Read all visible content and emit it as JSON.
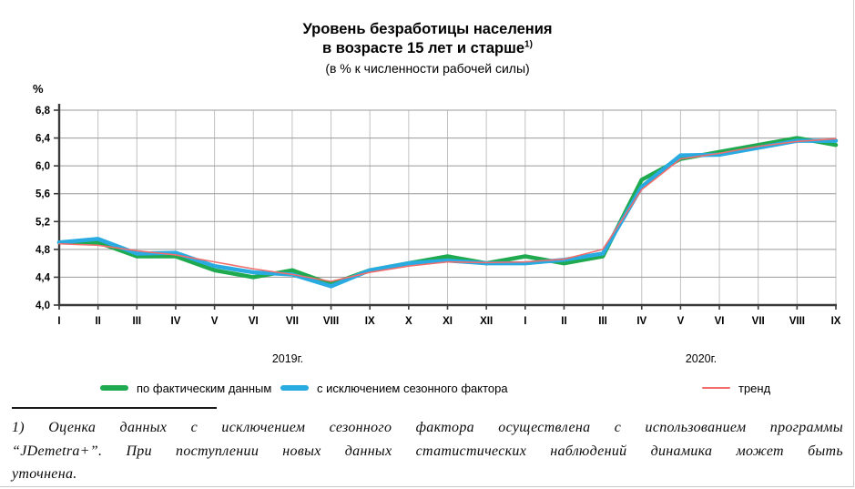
{
  "title": {
    "line1": "Уровень безработицы населения",
    "line2": "в возрасте 15 лет и старше",
    "footnote_ref": "1)",
    "subtitle": "(в % к численности рабочей силы)"
  },
  "chart_data": {
    "type": "line",
    "unit_label": "%",
    "categories": [
      "I",
      "II",
      "III",
      "IV",
      "V",
      "VI",
      "VII",
      "VIII",
      "IX",
      "X",
      "XI",
      "XII",
      "I",
      "II",
      "III",
      "IV",
      "V",
      "VI",
      "VII",
      "VIII",
      "IX"
    ],
    "year_labels": [
      "2019г.",
      "2020г."
    ],
    "ylim": [
      4.0,
      6.8
    ],
    "ystep": 0.4,
    "grid": true,
    "legend_position": "bottom",
    "series": [
      {
        "name": "по фактическим данным",
        "color": "#1faa4f",
        "stroke_width": 4.5,
        "values": [
          4.9,
          4.9,
          4.7,
          4.7,
          4.5,
          4.4,
          4.5,
          4.3,
          4.5,
          4.6,
          4.7,
          4.6,
          4.7,
          4.6,
          4.7,
          5.8,
          6.1,
          6.2,
          6.3,
          6.4,
          6.3
        ]
      },
      {
        "name": "с исключением сезонного фактора",
        "color": "#29abe2",
        "stroke_width": 4.5,
        "values": [
          4.9,
          4.95,
          4.74,
          4.75,
          4.56,
          4.47,
          4.44,
          4.27,
          4.5,
          4.6,
          4.64,
          4.6,
          4.6,
          4.65,
          4.74,
          5.7,
          6.15,
          6.16,
          6.26,
          6.36,
          6.36
        ]
      },
      {
        "name": "тренд",
        "color": "#f26c6c",
        "stroke_width": 1.6,
        "values": [
          4.88,
          4.86,
          4.78,
          4.72,
          4.62,
          4.52,
          4.44,
          4.34,
          4.47,
          4.56,
          4.62,
          4.61,
          4.62,
          4.66,
          4.8,
          5.66,
          6.1,
          6.18,
          6.28,
          6.35,
          6.39
        ]
      }
    ]
  },
  "footnote": {
    "line1": "1) Оценка данных с исключением сезонного фактора осуществлена с использованием программы",
    "line2": "“JDemetra+”. При поступлении новых данных статистических наблюдений динамика может быть",
    "line3": "уточнена."
  }
}
